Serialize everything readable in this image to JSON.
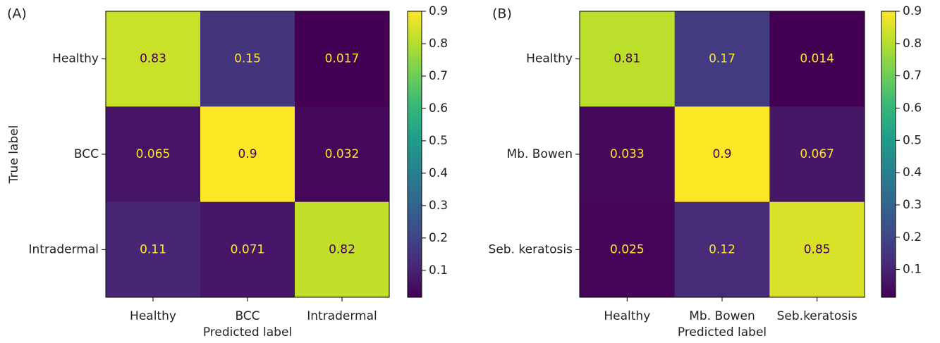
{
  "chart_data": [
    {
      "type": "heatmap",
      "panel_label": "(A)",
      "row_labels": [
        "Healthy",
        "BCC",
        "Intradermal"
      ],
      "col_labels": [
        "Healthy",
        "BCC",
        "Intradermal"
      ],
      "values": [
        [
          0.83,
          0.15,
          0.017
        ],
        [
          0.065,
          0.9,
          0.032
        ],
        [
          0.11,
          0.071,
          0.82
        ]
      ],
      "xlabel": "Predicted label",
      "ylabel": "True label",
      "zlim": [
        0.017,
        0.9
      ],
      "zticks": [
        0.1,
        0.2,
        0.3,
        0.4,
        0.5,
        0.6,
        0.7,
        0.8,
        0.9
      ],
      "colormap": [
        "#440154",
        "#482878",
        "#3e4989",
        "#31688e",
        "#26828e",
        "#1f9e89",
        "#35b779",
        "#6ece58",
        "#b5de2b",
        "#fde725"
      ]
    },
    {
      "type": "heatmap",
      "panel_label": "(B)",
      "row_labels": [
        "Healthy",
        "Mb. Bowen",
        "Seb. keratosis"
      ],
      "col_labels": [
        "Healthy",
        "Mb. Bowen",
        "Seb.keratosis"
      ],
      "values": [
        [
          0.81,
          0.17,
          0.014
        ],
        [
          0.033,
          0.9,
          0.067
        ],
        [
          0.025,
          0.12,
          0.85
        ]
      ],
      "xlabel": "Predicted label",
      "zlim": [
        0.014,
        0.9
      ],
      "zticks": [
        0.1,
        0.2,
        0.3,
        0.4,
        0.5,
        0.6,
        0.7,
        0.8,
        0.9
      ],
      "colormap": [
        "#440154",
        "#482878",
        "#3e4989",
        "#31688e",
        "#26828e",
        "#1f9e89",
        "#35b779",
        "#6ece58",
        "#b5de2b",
        "#fde725"
      ]
    }
  ]
}
